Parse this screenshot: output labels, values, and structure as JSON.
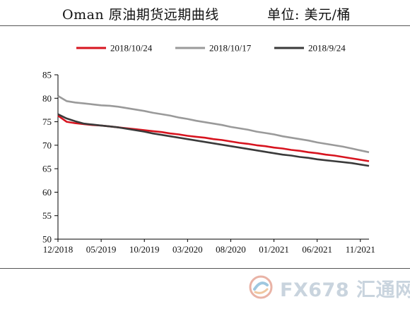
{
  "header": {
    "title": "Oman 原油期货远期曲线",
    "unit": "单位: 美元/桶"
  },
  "watermark": {
    "text": "FX678 汇通网",
    "icon": "fx678-logo-icon"
  },
  "chart_data": {
    "type": "line",
    "xlabels": [
      "12/2018",
      "05/2019",
      "10/2019",
      "03/2020",
      "08/2020",
      "01/2021",
      "06/2021",
      "11/2021"
    ],
    "x": [
      "2018-12",
      "2019-01",
      "2019-02",
      "2019-03",
      "2019-04",
      "2019-05",
      "2019-06",
      "2019-07",
      "2019-08",
      "2019-09",
      "2019-10",
      "2019-11",
      "2019-12",
      "2020-01",
      "2020-02",
      "2020-03",
      "2020-04",
      "2020-05",
      "2020-06",
      "2020-07",
      "2020-08",
      "2020-09",
      "2020-10",
      "2020-11",
      "2020-12",
      "2021-01",
      "2021-02",
      "2021-03",
      "2021-04",
      "2021-05",
      "2021-06",
      "2021-07",
      "2021-08",
      "2021-09",
      "2021-10",
      "2021-11",
      "2021-12"
    ],
    "yticks": [
      50,
      55,
      60,
      65,
      70,
      75,
      80,
      85
    ],
    "ylim": [
      50,
      85
    ],
    "legend_position": "top",
    "grid": false,
    "series": [
      {
        "name": "2018/10/24",
        "color": "#d7141f",
        "values": [
          76.3,
          75.0,
          74.7,
          74.5,
          74.3,
          74.2,
          74.0,
          73.8,
          73.6,
          73.4,
          73.2,
          73.0,
          72.8,
          72.5,
          72.3,
          72.0,
          71.8,
          71.6,
          71.3,
          71.1,
          70.8,
          70.5,
          70.3,
          70.0,
          69.8,
          69.5,
          69.3,
          69.0,
          68.8,
          68.5,
          68.3,
          68.0,
          67.8,
          67.5,
          67.2,
          66.9,
          66.6
        ]
      },
      {
        "name": "2018/10/17",
        "color": "#9a9a9a",
        "values": [
          80.5,
          79.4,
          79.1,
          78.9,
          78.7,
          78.5,
          78.4,
          78.2,
          77.9,
          77.6,
          77.3,
          76.9,
          76.6,
          76.3,
          75.9,
          75.6,
          75.2,
          74.9,
          74.6,
          74.3,
          73.9,
          73.6,
          73.3,
          72.9,
          72.6,
          72.3,
          71.9,
          71.6,
          71.3,
          71.0,
          70.6,
          70.3,
          70.0,
          69.7,
          69.3,
          68.9,
          68.5
        ]
      },
      {
        "name": "2018/9/24",
        "color": "#3a3a3a",
        "values": [
          76.6,
          75.7,
          75.1,
          74.6,
          74.4,
          74.2,
          74.0,
          73.8,
          73.5,
          73.2,
          72.9,
          72.5,
          72.2,
          71.9,
          71.6,
          71.3,
          71.0,
          70.7,
          70.4,
          70.1,
          69.8,
          69.5,
          69.2,
          68.9,
          68.6,
          68.3,
          68.0,
          67.8,
          67.5,
          67.3,
          67.0,
          66.8,
          66.6,
          66.4,
          66.2,
          65.9,
          65.6
        ]
      }
    ]
  }
}
